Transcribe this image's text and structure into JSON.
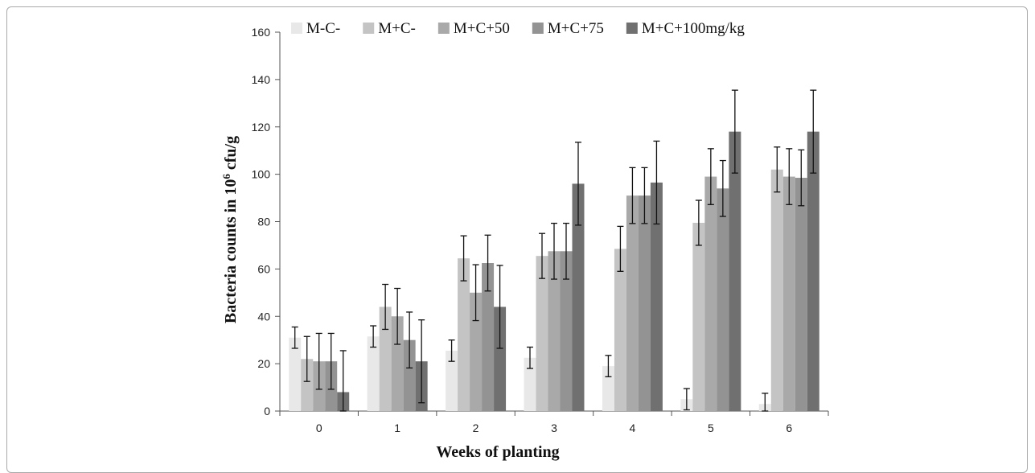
{
  "chart_data": {
    "type": "bar",
    "xlabel": "Weeks  of planting",
    "ylabel": "Bacteria counts in 10⁶ cfu/g",
    "ylim": [
      0,
      160
    ],
    "yticks": [
      0,
      20,
      40,
      60,
      80,
      100,
      120,
      140,
      160
    ],
    "grid": false,
    "legend_position": "top",
    "categories": [
      "0",
      "1",
      "2",
      "3",
      "4",
      "5",
      "6"
    ],
    "series": [
      {
        "name": "M-C-",
        "color": "#e8e8e8",
        "values": [
          31,
          31.5,
          25.5,
          22.5,
          19,
          5,
          3
        ],
        "errors": [
          4.5,
          4.5,
          4.5,
          4.5,
          4.5,
          4.5,
          4.5
        ]
      },
      {
        "name": "M+C-",
        "color": "#c4c4c4",
        "values": [
          22,
          44,
          64.5,
          65.5,
          68.5,
          79.5,
          102
        ],
        "errors": [
          9.5,
          9.5,
          9.5,
          9.5,
          9.5,
          9.5,
          9.5
        ]
      },
      {
        "name": "M+C+50",
        "color": "#a9a9a9",
        "values": [
          21,
          40,
          50,
          67.5,
          91,
          99,
          99
        ],
        "errors": [
          11.8,
          11.8,
          11.8,
          11.8,
          11.8,
          11.8,
          11.8
        ]
      },
      {
        "name": "M+C+75",
        "color": "#939393",
        "values": [
          21,
          30,
          62.5,
          67.5,
          91,
          94,
          98.5
        ],
        "errors": [
          11.8,
          11.8,
          11.8,
          11.8,
          11.8,
          11.8,
          11.8
        ]
      },
      {
        "name": "M+C+100mg/kg",
        "color": "#707070",
        "values": [
          8,
          21,
          44,
          96,
          96.5,
          118,
          118
        ],
        "errors": [
          17.5,
          17.5,
          17.5,
          17.5,
          17.5,
          17.5,
          17.5
        ]
      }
    ]
  }
}
